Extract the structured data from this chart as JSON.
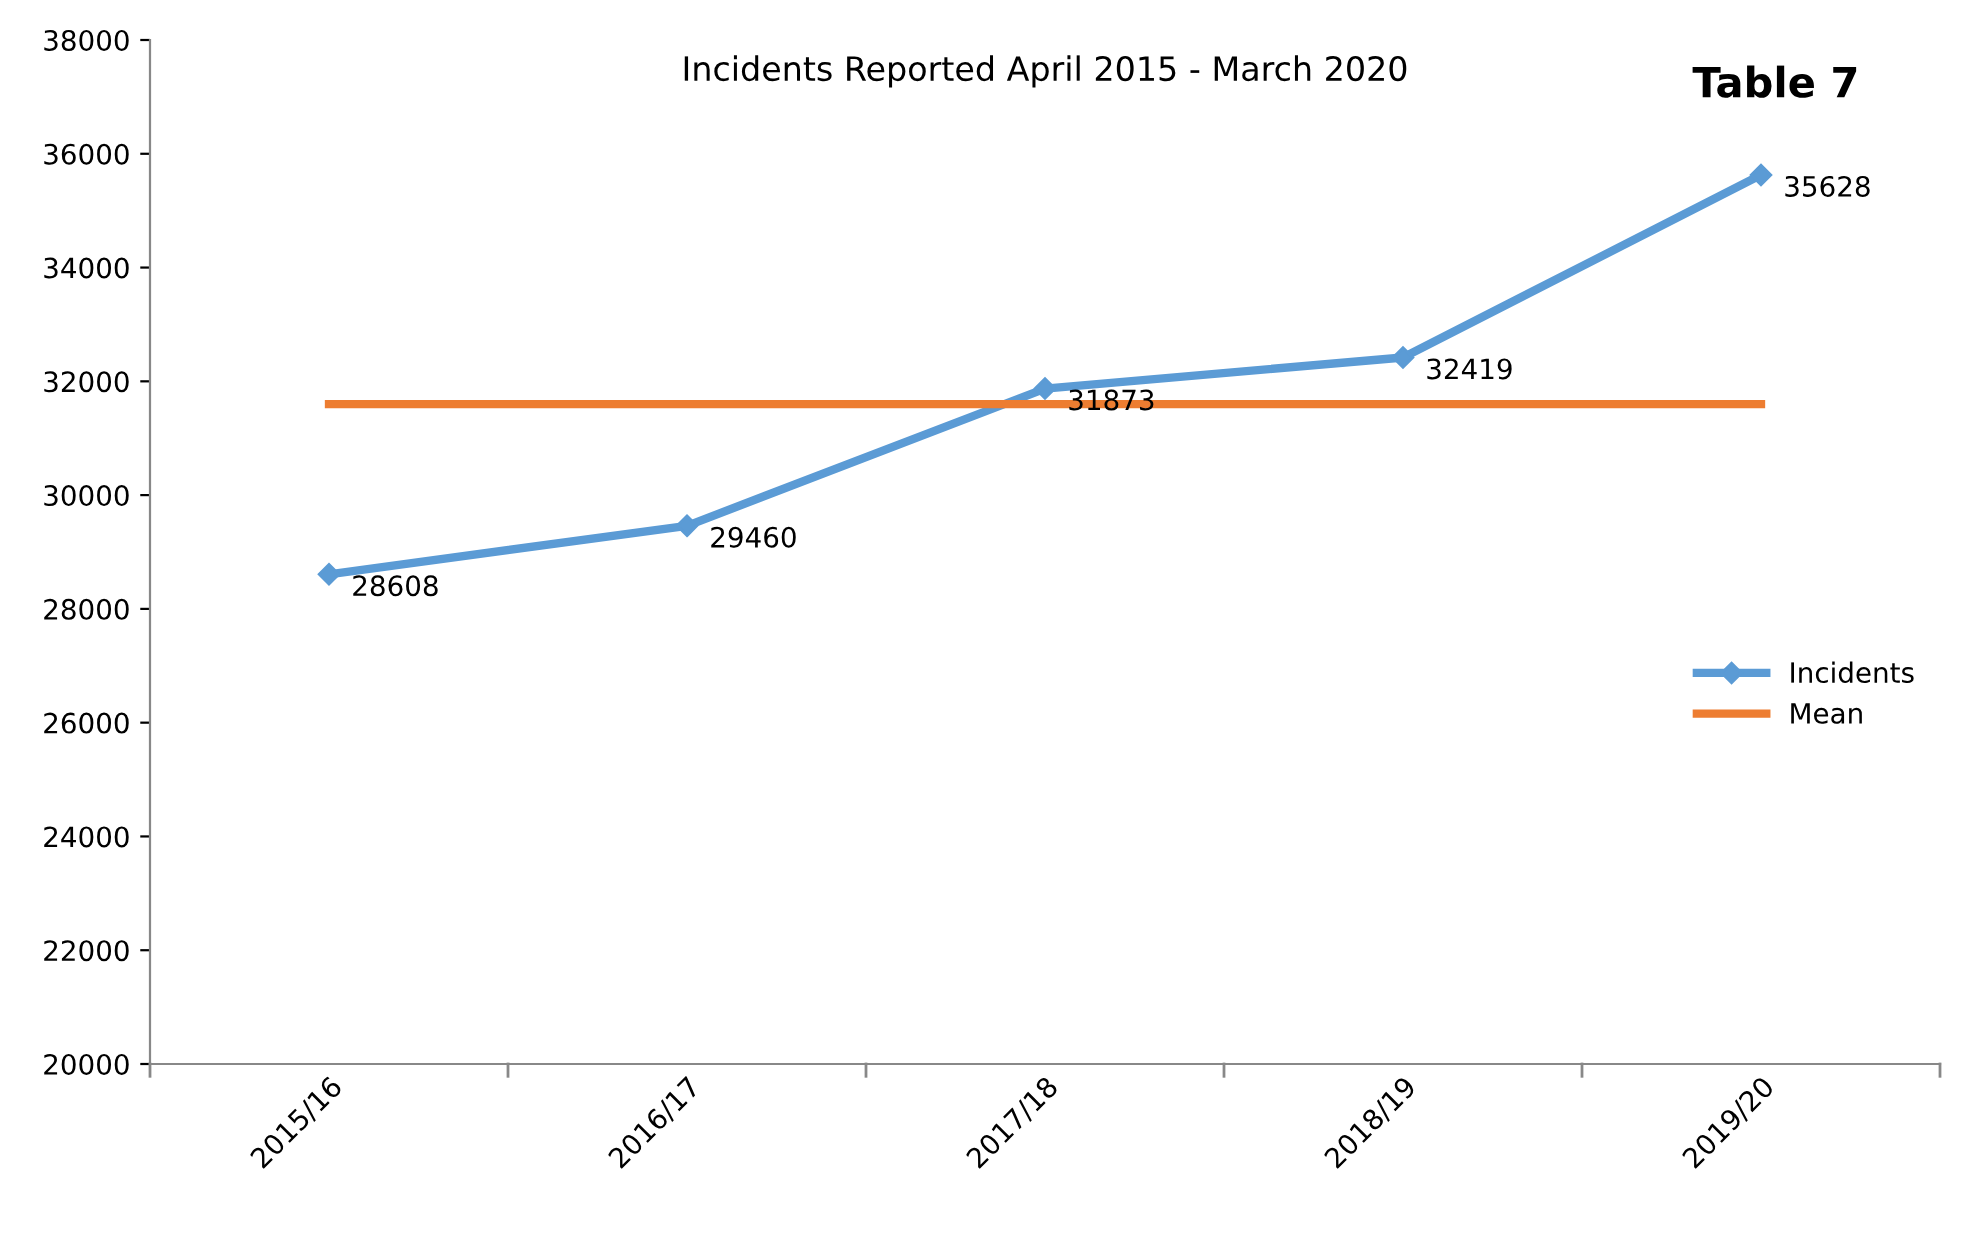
{
  "chart_data": {
    "type": "line",
    "title": "Incidents Reported April 2015 - March 2020",
    "categories": [
      "2015/16",
      "2016/17",
      "2017/18",
      "2018/19",
      "2019/20"
    ],
    "series": [
      {
        "name": "Incidents",
        "color": "#5b9bd5",
        "marker": "diamond",
        "values": [
          28608,
          29460,
          31873,
          32419,
          35628
        ],
        "value_labels": [
          "28608",
          "29460",
          "31873",
          "32419",
          "35628"
        ]
      },
      {
        "name": "Mean",
        "color": "#ed7d31",
        "marker": "none",
        "values": [
          31600,
          31600,
          31600,
          31600,
          31600
        ]
      }
    ],
    "ylim": [
      20000,
      38000
    ],
    "yticks": [
      20000,
      22000,
      24000,
      26000,
      28000,
      30000,
      32000,
      34000,
      36000,
      38000
    ],
    "grid": false,
    "legend": "right",
    "line_style": "solid",
    "annotations": [
      "Table 7"
    ]
  }
}
